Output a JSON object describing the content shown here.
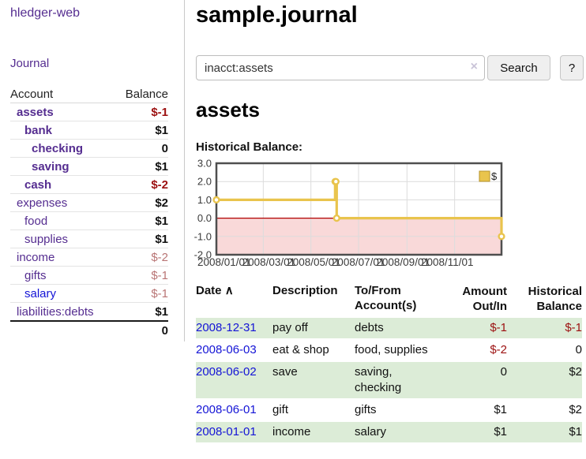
{
  "colors": {
    "link_visited_purple": "#552d90",
    "link_blue": "#1414d6",
    "negative_strong": "#9c1010",
    "negative_soft": "#b97575",
    "register_row_green": "#dcecd7",
    "chart_line_gold": "#e9c44d",
    "chart_negative_fill": "#f9d9d9",
    "chart_zero_line": "#b00000",
    "button_bg": "#efefef"
  },
  "sidebar": {
    "app_title": "hledger-web",
    "nav": {
      "journal": "Journal"
    },
    "table": {
      "account_header": "Account",
      "balance_header": "Balance",
      "accounts": [
        {
          "name": "assets",
          "balance": "$-1",
          "level": 1,
          "emphasis": true,
          "balance_tone": "negative-strong"
        },
        {
          "name": "bank",
          "balance": "$1",
          "level": 2,
          "emphasis": true,
          "balance_tone": "normal"
        },
        {
          "name": "checking",
          "balance": "0",
          "level": 3,
          "emphasis": true,
          "balance_tone": "normal"
        },
        {
          "name": "saving",
          "balance": "$1",
          "level": 3,
          "emphasis": true,
          "balance_tone": "normal"
        },
        {
          "name": "cash",
          "balance": "$-2",
          "level": 2,
          "emphasis": true,
          "balance_tone": "negative-strong"
        },
        {
          "name": "expenses",
          "balance": "$2",
          "level": 1,
          "emphasis": false,
          "balance_tone": "normal"
        },
        {
          "name": "food",
          "balance": "$1",
          "level": 2,
          "emphasis": false,
          "balance_tone": "normal"
        },
        {
          "name": "supplies",
          "balance": "$1",
          "level": 2,
          "emphasis": false,
          "balance_tone": "normal"
        },
        {
          "name": "income",
          "balance": "$-2",
          "level": 1,
          "emphasis": false,
          "balance_tone": "negative-soft"
        },
        {
          "name": "gifts",
          "balance": "$-1",
          "level": 2,
          "emphasis": false,
          "balance_tone": "negative-soft"
        },
        {
          "name": "salary",
          "balance": "$-1",
          "level": 2,
          "emphasis": false,
          "balance_tone": "negative-soft",
          "link_state": "unvisited-blue"
        },
        {
          "name": "liabilities:debts",
          "balance": "$1",
          "level": 1,
          "emphasis": false,
          "balance_tone": "normal"
        }
      ],
      "total": "0"
    }
  },
  "main": {
    "title": "sample.journal",
    "search": {
      "query": "inacct:assets",
      "clear_icon": "×",
      "search_button": "Search",
      "help_button": "?"
    },
    "account_heading": "assets",
    "chart_label": "Historical Balance:"
  },
  "chart_data": {
    "type": "line",
    "title": "Historical Balance:",
    "step": true,
    "series": [
      {
        "name": "$",
        "color": "#e9c44d",
        "points": [
          {
            "x": "2008-01-01",
            "y": 1
          },
          {
            "x": "2008-06-01",
            "y": 2
          },
          {
            "x": "2008-06-02",
            "y": 2
          },
          {
            "x": "2008-06-03",
            "y": 0
          },
          {
            "x": "2008-12-31",
            "y": -1
          }
        ]
      }
    ],
    "x_ticks": [
      "2008/01/01",
      "2008/03/01",
      "2008/05/01",
      "2008/07/01",
      "2008/09/01",
      "2008/11/01"
    ],
    "y_ticks": [
      "3.0",
      "2.0",
      "1.0",
      "0.0",
      "-1.0",
      "-2.0"
    ],
    "xlim": [
      "2008/01/01",
      "2008/12/31"
    ],
    "ylim": [
      -2,
      3
    ],
    "grid": true,
    "legend": {
      "label": "$",
      "position": "top-right"
    },
    "negative_region_color": "#f9d9d9",
    "zero_line_color": "#b00000"
  },
  "register": {
    "sort_icon": "∧",
    "headers": [
      "Date",
      "Description",
      "To/From Account(s)",
      "Amount Out/In",
      "Historical Balance"
    ],
    "rows": [
      {
        "date": "2008-12-31",
        "description": "pay off",
        "accounts": "debts",
        "amount": "$-1",
        "amount_tone": "negative",
        "balance": "$-1",
        "balance_tone": "negative",
        "striped": true
      },
      {
        "date": "2008-06-03",
        "description": "eat & shop",
        "accounts": "food, supplies",
        "amount": "$-2",
        "amount_tone": "negative",
        "balance": "0",
        "balance_tone": "normal",
        "striped": false
      },
      {
        "date": "2008-06-02",
        "description": "save",
        "accounts": "saving, checking",
        "amount": "0",
        "amount_tone": "normal",
        "balance": "$2",
        "balance_tone": "normal",
        "striped": true
      },
      {
        "date": "2008-06-01",
        "description": "gift",
        "accounts": "gifts",
        "amount": "$1",
        "amount_tone": "normal",
        "balance": "$2",
        "balance_tone": "normal",
        "striped": false
      },
      {
        "date": "2008-01-01",
        "description": "income",
        "accounts": "salary",
        "amount": "$1",
        "amount_tone": "normal",
        "balance": "$1",
        "balance_tone": "normal",
        "striped": true
      }
    ]
  }
}
